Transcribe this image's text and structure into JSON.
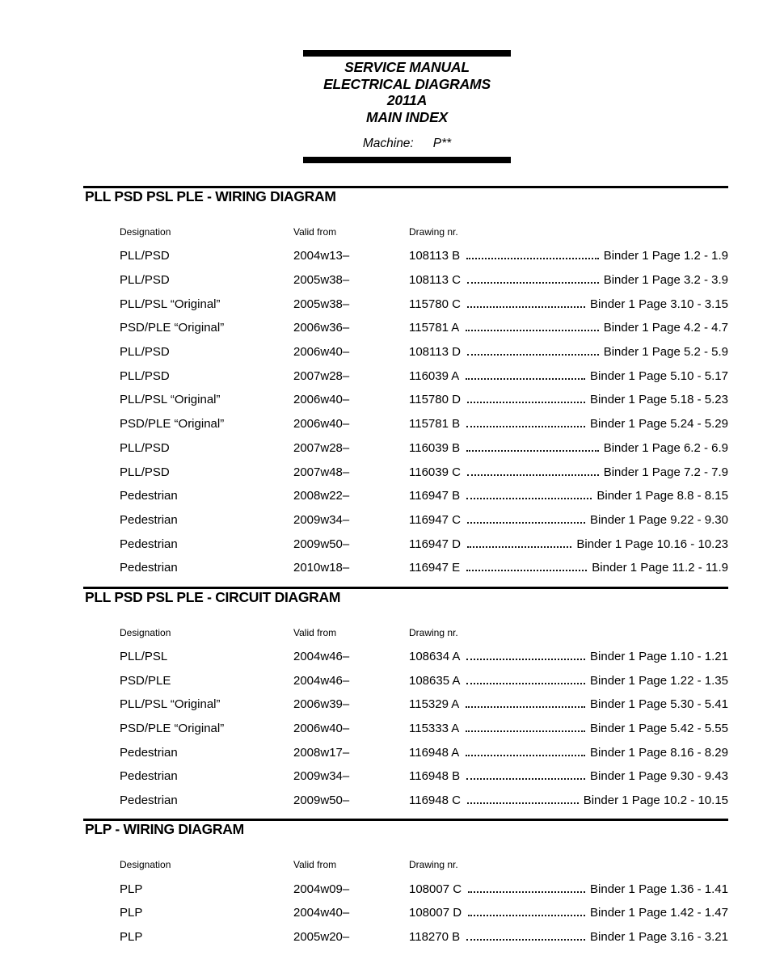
{
  "colors": {
    "text": "#000000",
    "background": "#ffffff"
  },
  "header": {
    "lines": [
      "SERVICE MANUAL",
      "ELECTRICAL DIAGRAMS",
      "2011A",
      "MAIN INDEX"
    ],
    "machine_label": "Machine:",
    "machine_value": "P**"
  },
  "columns": {
    "designation": "Designation",
    "valid_from": "Valid from",
    "drawing_nr": "Drawing nr."
  },
  "sections": [
    {
      "title": "PLL PSD PSL PLE - WIRING DIAGRAM",
      "rows": [
        {
          "designation": "PLL/PSD",
          "valid_from": "2004w13–",
          "drawing": "108113 B",
          "binder": "Binder 1 Page 1.2 - 1.9"
        },
        {
          "designation": "PLL/PSD",
          "valid_from": "2005w38–",
          "drawing": "108113 C",
          "binder": "Binder 1 Page 3.2 - 3.9"
        },
        {
          "designation": "PLL/PSL “Original”",
          "valid_from": "2005w38–",
          "drawing": "115780 C",
          "binder": "Binder 1 Page 3.10 - 3.15"
        },
        {
          "designation": "PSD/PLE “Original”",
          "valid_from": "2006w36–",
          "drawing": "115781 A",
          "binder": "Binder 1 Page 4.2 - 4.7"
        },
        {
          "designation": "PLL/PSD",
          "valid_from": "2006w40–",
          "drawing": "108113 D",
          "binder": "Binder 1 Page 5.2 - 5.9"
        },
        {
          "designation": "PLL/PSD",
          "valid_from": "2007w28–",
          "drawing": "116039 A",
          "binder": "Binder 1 Page 5.10 - 5.17"
        },
        {
          "designation": "PLL/PSL “Original”",
          "valid_from": "2006w40–",
          "drawing": "115780 D",
          "binder": "Binder 1 Page 5.18 - 5.23"
        },
        {
          "designation": "PSD/PLE “Original”",
          "valid_from": "2006w40–",
          "drawing": "115781 B",
          "binder": "Binder 1 Page 5.24 - 5.29"
        },
        {
          "designation": "PLL/PSD",
          "valid_from": "2007w28–",
          "drawing": "116039 B",
          "binder": "Binder 1 Page 6.2 - 6.9"
        },
        {
          "designation": "PLL/PSD",
          "valid_from": "2007w48–",
          "drawing": "116039 C",
          "binder": "Binder 1 Page 7.2 - 7.9"
        },
        {
          "designation": "Pedestrian",
          "valid_from": "2008w22–",
          "drawing": "116947 B",
          "binder": "Binder 1 Page 8.8 - 8.15"
        },
        {
          "designation": "Pedestrian",
          "valid_from": "2009w34–",
          "drawing": "116947 C",
          "binder": "Binder 1 Page 9.22 - 9.30"
        },
        {
          "designation": "Pedestrian",
          "valid_from": "2009w50–",
          "drawing": "116947 D",
          "binder": "Binder 1 Page 10.16 - 10.23"
        },
        {
          "designation": "Pedestrian",
          "valid_from": "2010w18–",
          "drawing": "116947 E",
          "binder": "Binder 1 Page 11.2 - 11.9"
        }
      ]
    },
    {
      "title": "PLL PSD PSL PLE - CIRCUIT DIAGRAM",
      "rows": [
        {
          "designation": "PLL/PSL",
          "valid_from": "2004w46–",
          "drawing": "108634 A",
          "binder": "Binder 1 Page 1.10 - 1.21"
        },
        {
          "designation": "PSD/PLE",
          "valid_from": "2004w46–",
          "drawing": "108635 A",
          "binder": "Binder 1 Page 1.22 - 1.35"
        },
        {
          "designation": "PLL/PSL “Original”",
          "valid_from": "2006w39–",
          "drawing": "115329 A",
          "binder": "Binder 1 Page 5.30 - 5.41"
        },
        {
          "designation": "PSD/PLE “Original”",
          "valid_from": "2006w40–",
          "drawing": "115333 A",
          "binder": "Binder 1 Page 5.42 - 5.55"
        },
        {
          "designation": "Pedestrian",
          "valid_from": "2008w17–",
          "drawing": "116948 A",
          "binder": "Binder 1 Page 8.16 - 8.29"
        },
        {
          "designation": "Pedestrian",
          "valid_from": "2009w34–",
          "drawing": "116948 B",
          "binder": "Binder 1 Page 9.30 - 9.43"
        },
        {
          "designation": "Pedestrian",
          "valid_from": "2009w50–",
          "drawing": "116948 C",
          "binder": "Binder 1 Page 10.2 - 10.15"
        }
      ]
    },
    {
      "title": "PLP - WIRING DIAGRAM",
      "rows": [
        {
          "designation": "PLP",
          "valid_from": "2004w09–",
          "drawing": "108007 C",
          "binder": "Binder 1 Page 1.36 - 1.41"
        },
        {
          "designation": "PLP",
          "valid_from": "2004w40–",
          "drawing": "108007 D",
          "binder": "Binder 1 Page 1.42 - 1.47"
        },
        {
          "designation": "PLP",
          "valid_from": "2005w20–",
          "drawing": "118270 B",
          "binder": "Binder 1 Page 3.16 - 3.21"
        }
      ]
    }
  ]
}
